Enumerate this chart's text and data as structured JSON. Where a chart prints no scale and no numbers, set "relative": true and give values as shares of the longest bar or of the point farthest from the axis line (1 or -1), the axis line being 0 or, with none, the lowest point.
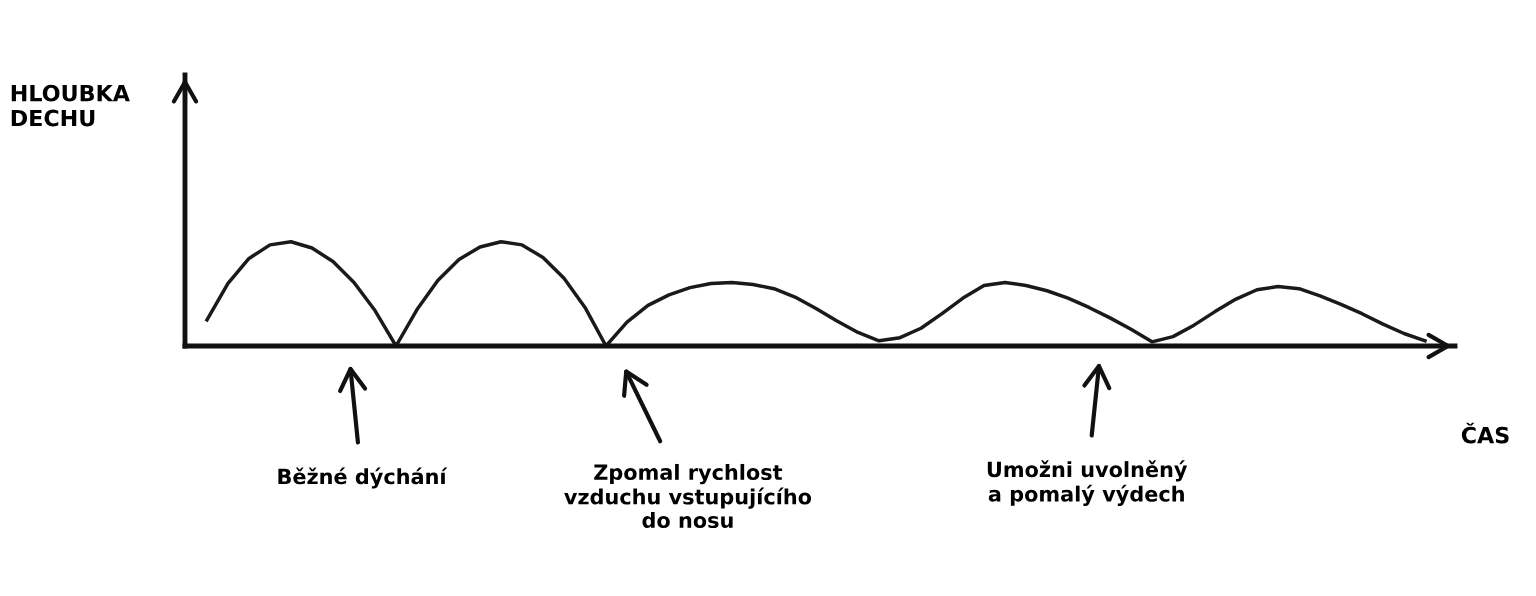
{
  "chart_data": {
    "type": "line",
    "relative": true,
    "xlabel": "ČAS",
    "categories": [
      null,
      null,
      null,
      null,
      null,
      null,
      null,
      null,
      null,
      null,
      null,
      null,
      null,
      null,
      null,
      null,
      null,
      null,
      null,
      null,
      null,
      null,
      null,
      null,
      null,
      null,
      null,
      null,
      null,
      null,
      null,
      null,
      null,
      null,
      null,
      null,
      null,
      null,
      null,
      null,
      null,
      null,
      null,
      null,
      null,
      null,
      null,
      null,
      null,
      null,
      null,
      null,
      null,
      null,
      null,
      null,
      null,
      null,
      null
    ],
    "series": [
      {
        "color": "#1a1a1a",
        "values": [
          0.25,
          0.6,
          0.84,
          0.97,
          1.0,
          0.94,
          0.81,
          0.61,
          0.34,
          0,
          0.35,
          0.63,
          0.83,
          0.95,
          1.0,
          0.97,
          0.85,
          0.65,
          0.37,
          0,
          0.23,
          0.39,
          0.49,
          0.56,
          0.6,
          0.61,
          0.59,
          0.55,
          0.47,
          0.36,
          0.24,
          0.13,
          0.05,
          0.08,
          0.17,
          0.31,
          0.46,
          0.58,
          0.61,
          0.58,
          0.53,
          0.46,
          0.37,
          0.27,
          0.16,
          0.04,
          0.09,
          0.2,
          0.33,
          0.45,
          0.54,
          0.57,
          0.55,
          0.48,
          0.4,
          0.31,
          0.21,
          0.12,
          0.05
        ]
      }
    ],
    "annotations": [
      "HLOUBKA\nDECHU",
      "Běžné dýchání",
      "Zpomal rychlost\nvzduchu vstupujícího\ndo nosu",
      "Umožni uvolněný\na pomalý výdech"
    ],
    "legend": false,
    "marker": "none",
    "line_style": "solid"
  }
}
